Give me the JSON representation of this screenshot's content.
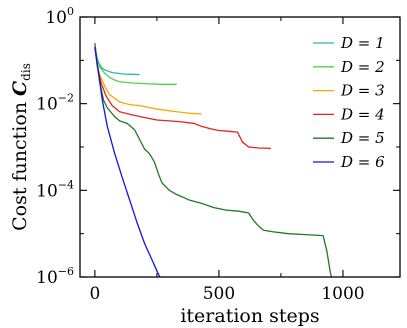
{
  "chart_data": {
    "type": "line",
    "xlabel": "iteration steps",
    "ylabel": "Cost function",
    "ylabel_symbol": "C",
    "ylabel_subscript": "dis",
    "xlim": [
      -60,
      1230
    ],
    "ylim_log10": [
      -6,
      0
    ],
    "y_scale": "log",
    "x_ticks": [
      0,
      500,
      1000
    ],
    "x_tick_labels": [
      "0",
      "500",
      "1000"
    ],
    "y_ticks": [
      1,
      0.01,
      0.0001,
      1e-06
    ],
    "y_tick_labels": [
      {
        "base": "10",
        "exp": "0"
      },
      {
        "base": "10",
        "exp": "−2"
      },
      {
        "base": "10",
        "exp": "−4"
      },
      {
        "base": "10",
        "exp": "−6"
      }
    ],
    "grid": false,
    "legend_position": "top-right",
    "series": [
      {
        "name": "D = 1",
        "color": "#2ab5b5",
        "points": [
          [
            0,
            0.2
          ],
          [
            8,
            0.12
          ],
          [
            15,
            0.09
          ],
          [
            25,
            0.07
          ],
          [
            40,
            0.06
          ],
          [
            70,
            0.052
          ],
          [
            120,
            0.048
          ],
          [
            180,
            0.047
          ]
        ]
      },
      {
        "name": "D = 2",
        "color": "#4cd44c",
        "points": [
          [
            0,
            0.2
          ],
          [
            10,
            0.1
          ],
          [
            20,
            0.07
          ],
          [
            40,
            0.05
          ],
          [
            60,
            0.04
          ],
          [
            80,
            0.035
          ],
          [
            100,
            0.032
          ],
          [
            150,
            0.03
          ],
          [
            200,
            0.029
          ],
          [
            260,
            0.028
          ],
          [
            330,
            0.028
          ]
        ]
      },
      {
        "name": "D = 3",
        "color": "#f5a800",
        "points": [
          [
            0,
            0.2
          ],
          [
            10,
            0.08
          ],
          [
            20,
            0.045
          ],
          [
            40,
            0.025
          ],
          [
            60,
            0.016
          ],
          [
            100,
            0.011
          ],
          [
            140,
            0.0095
          ],
          [
            180,
            0.009
          ],
          [
            250,
            0.0075
          ],
          [
            330,
            0.0065
          ],
          [
            380,
            0.006
          ],
          [
            430,
            0.0058
          ]
        ]
      },
      {
        "name": "D = 4",
        "color": "#e82020",
        "points": [
          [
            0,
            0.2
          ],
          [
            10,
            0.07
          ],
          [
            25,
            0.03
          ],
          [
            45,
            0.015
          ],
          [
            70,
            0.009
          ],
          [
            100,
            0.0065
          ],
          [
            150,
            0.0055
          ],
          [
            200,
            0.0048
          ],
          [
            250,
            0.0042
          ],
          [
            300,
            0.004
          ],
          [
            350,
            0.0038
          ],
          [
            400,
            0.0035
          ],
          [
            430,
            0.003
          ],
          [
            470,
            0.0026
          ],
          [
            500,
            0.0024
          ],
          [
            540,
            0.0023
          ],
          [
            575,
            0.0022
          ],
          [
            595,
            0.0013
          ],
          [
            620,
            0.001
          ],
          [
            660,
            0.00095
          ],
          [
            710,
            0.00093
          ]
        ]
      },
      {
        "name": "D = 5",
        "color": "#1f7a1f",
        "points": [
          [
            0,
            0.25
          ],
          [
            10,
            0.08
          ],
          [
            20,
            0.03
          ],
          [
            35,
            0.012
          ],
          [
            50,
            0.008
          ],
          [
            80,
            0.005
          ],
          [
            100,
            0.004
          ],
          [
            130,
            0.0035
          ],
          [
            160,
            0.0025
          ],
          [
            180,
            0.0015
          ],
          [
            200,
            0.0009
          ],
          [
            220,
            0.0007
          ],
          [
            240,
            0.00045
          ],
          [
            255,
            0.00025
          ],
          [
            270,
            0.00015
          ],
          [
            300,
            0.0001
          ],
          [
            330,
            8e-05
          ],
          [
            380,
            6e-05
          ],
          [
            430,
            5e-05
          ],
          [
            480,
            4e-05
          ],
          [
            530,
            3.5e-05
          ],
          [
            580,
            3.3e-05
          ],
          [
            620,
            3e-05
          ],
          [
            640,
            2e-05
          ],
          [
            660,
            1.5e-05
          ],
          [
            680,
            1.2e-05
          ],
          [
            720,
            1.1e-05
          ],
          [
            780,
            1e-05
          ],
          [
            850,
            9.5e-06
          ],
          [
            920,
            9e-06
          ],
          [
            935,
            4e-06
          ],
          [
            950,
            1.2e-06
          ],
          [
            960,
            8e-07
          ]
        ]
      },
      {
        "name": "D = 6",
        "color": "#1414e0",
        "points": [
          [
            0,
            0.2
          ],
          [
            15,
            0.05
          ],
          [
            30,
            0.012
          ],
          [
            50,
            0.003
          ],
          [
            80,
            0.0007
          ],
          [
            110,
            0.0002
          ],
          [
            140,
            6e-05
          ],
          [
            170,
            1.8e-05
          ],
          [
            200,
            6e-06
          ],
          [
            230,
            2.5e-06
          ],
          [
            255,
            1.2e-06
          ],
          [
            270,
            8e-07
          ]
        ]
      }
    ]
  }
}
